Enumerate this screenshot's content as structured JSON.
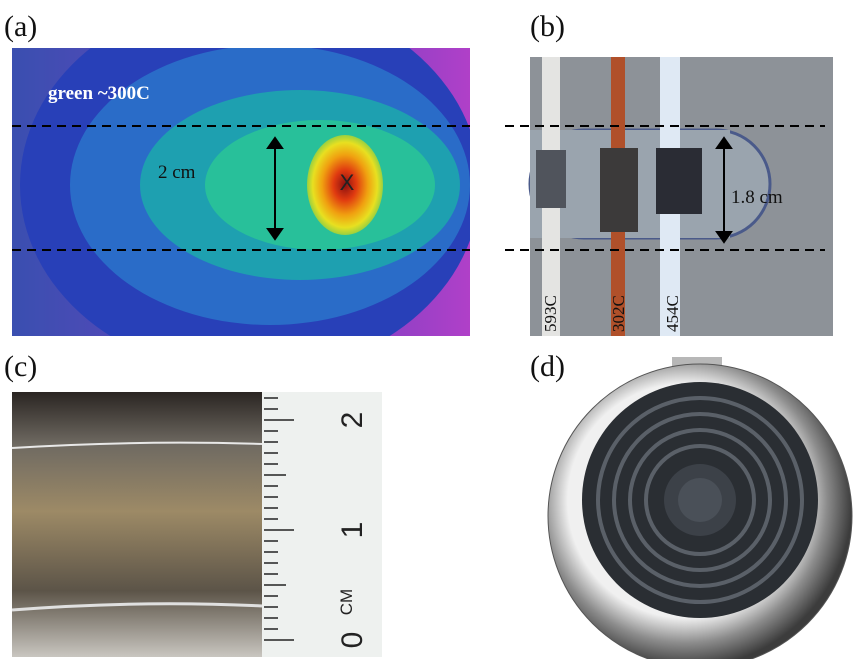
{
  "panels": [
    {
      "label": "(a)",
      "annotations": {
        "temperature": "green ~300C",
        "width": "2 cm",
        "center": "X"
      }
    },
    {
      "label": "(b)",
      "annotations": {
        "width": "1.8 cm"
      },
      "strips": [
        "593C",
        "302C",
        "454C"
      ]
    },
    {
      "label": "(c)",
      "ruler": {
        "labels": [
          "0",
          "1",
          "2"
        ],
        "unit": "CM"
      }
    },
    {
      "label": "(d)"
    }
  ]
}
